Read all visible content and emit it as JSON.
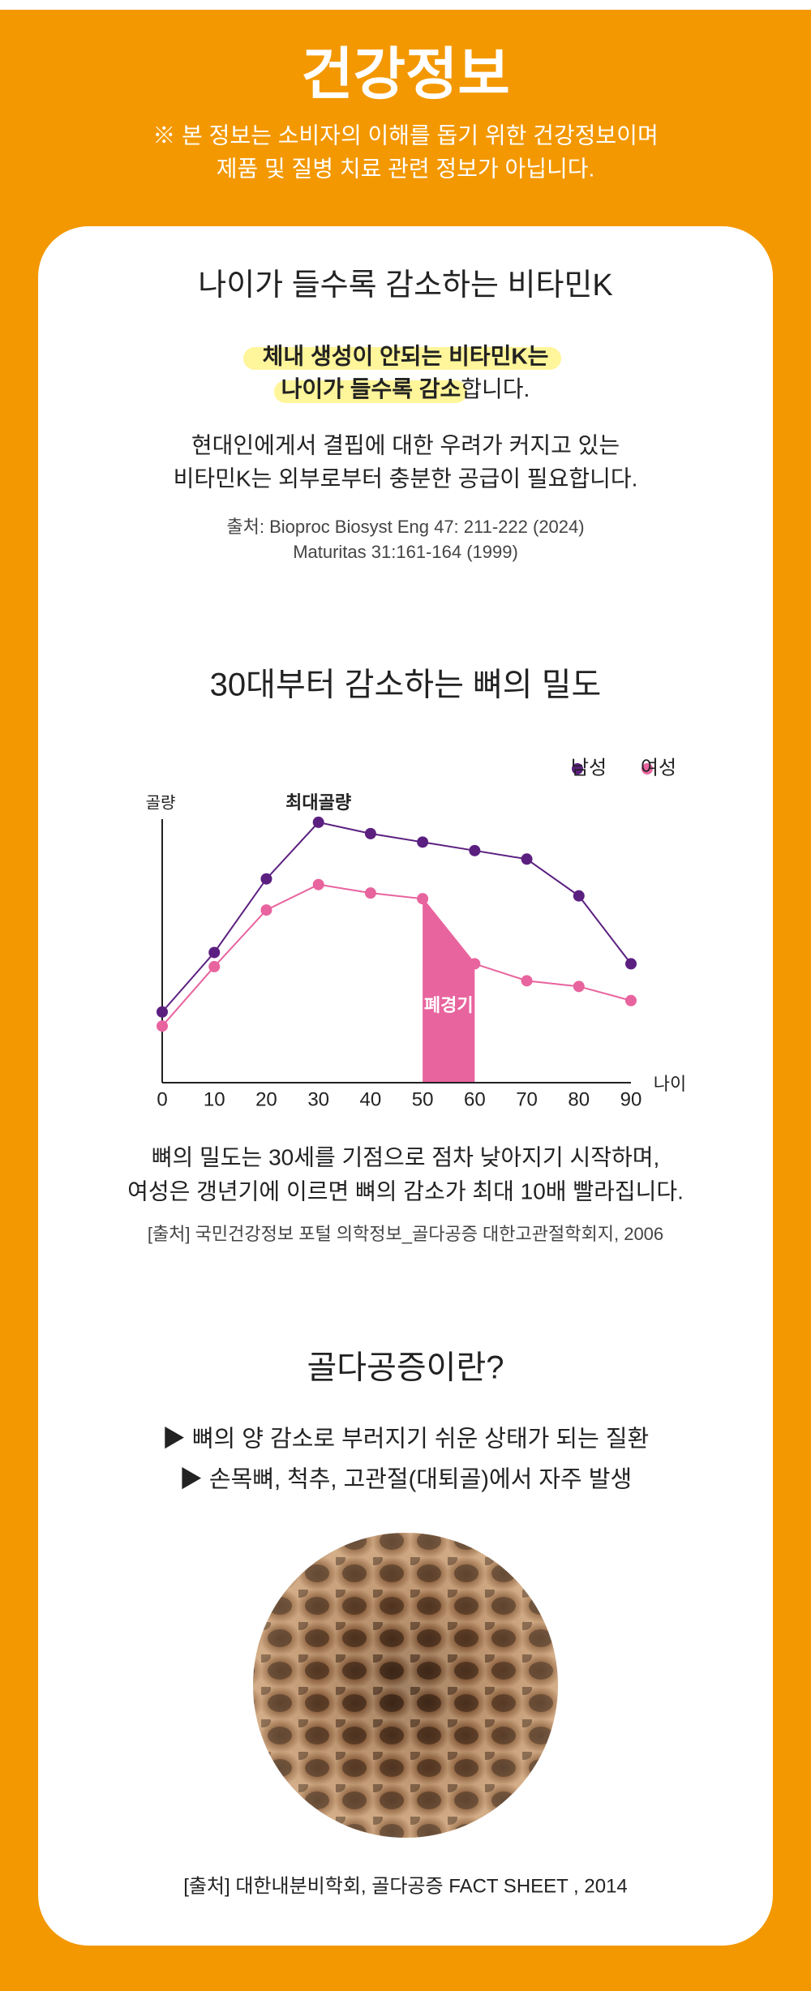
{
  "header": {
    "title": "건강정보",
    "notice": [
      "※ 본 정보는 소비자의 이해를 돕기 위한 건강정보이며",
      "제품 및 질병 치료 관련 정보가 아닙니다."
    ]
  },
  "vitamin_k": {
    "title": "나이가 들수록 감소하는 비타민K",
    "highlight": [
      "체내 생성이 안되는 비타민K는",
      "나이가 들수록 감소"
    ],
    "highlight_tail": "합니다.",
    "body": [
      "현대인에게서 결핍에 대한 우려가 커지고 있는",
      "비타민K는 외부로부터 충분한 공급이 필요합니다."
    ],
    "source": [
      "출처: Bioproc Biosyst Eng 47: 211-222 (2024)",
      "Maturitas 31:161-164 (1999)"
    ]
  },
  "bone_density": {
    "title": "30대부터 감소하는 뼈의 밀도",
    "body": [
      "뼈의 밀도는 30세를 기점으로 점차 낮아지기 시작하며,",
      "여성은 갱년기에 이르면 뼈의 감소가 최대 10배 빨라집니다."
    ],
    "source": "[출처] 국민건강정보 포털 의학정보_골다공증 대한고관절학회지, 2006"
  },
  "chart_data": {
    "type": "line",
    "legend": "top-right",
    "x": [
      0,
      10,
      20,
      30,
      40,
      50,
      60,
      70,
      80,
      90
    ],
    "xlim": [
      0,
      90
    ],
    "xticks": [
      0,
      10,
      20,
      30,
      40,
      50,
      60,
      70,
      80,
      90
    ],
    "ylim": [
      0,
      100
    ],
    "xlabel": "나이",
    "ylabel": "골량",
    "annotations": [
      {
        "text": "최대골량",
        "x": 30
      }
    ],
    "menopause": {
      "label": "폐경기",
      "x": [
        50,
        60
      ],
      "color": "#e8649e"
    },
    "series": [
      {
        "name": "남성",
        "color": "#5b1f80",
        "values": [
          25,
          46,
          72,
          92,
          88,
          85,
          82,
          79,
          66,
          42
        ]
      },
      {
        "name": "여성",
        "color": "#e8649e",
        "values": [
          20,
          41,
          61,
          70,
          67,
          65,
          42,
          36,
          34,
          29
        ]
      }
    ]
  },
  "osteoporosis": {
    "title": "골다공증이란?",
    "bullets": [
      "▶ 뼈의 양 감소로 부러지기 쉬운 상태가 되는 질환",
      "▶ 손목뼈, 척추, 고관절(대퇴골)에서 자주 발생"
    ],
    "source": "[출처] 대한내분비학회, 골다공증 FACT SHEET , 2014"
  }
}
